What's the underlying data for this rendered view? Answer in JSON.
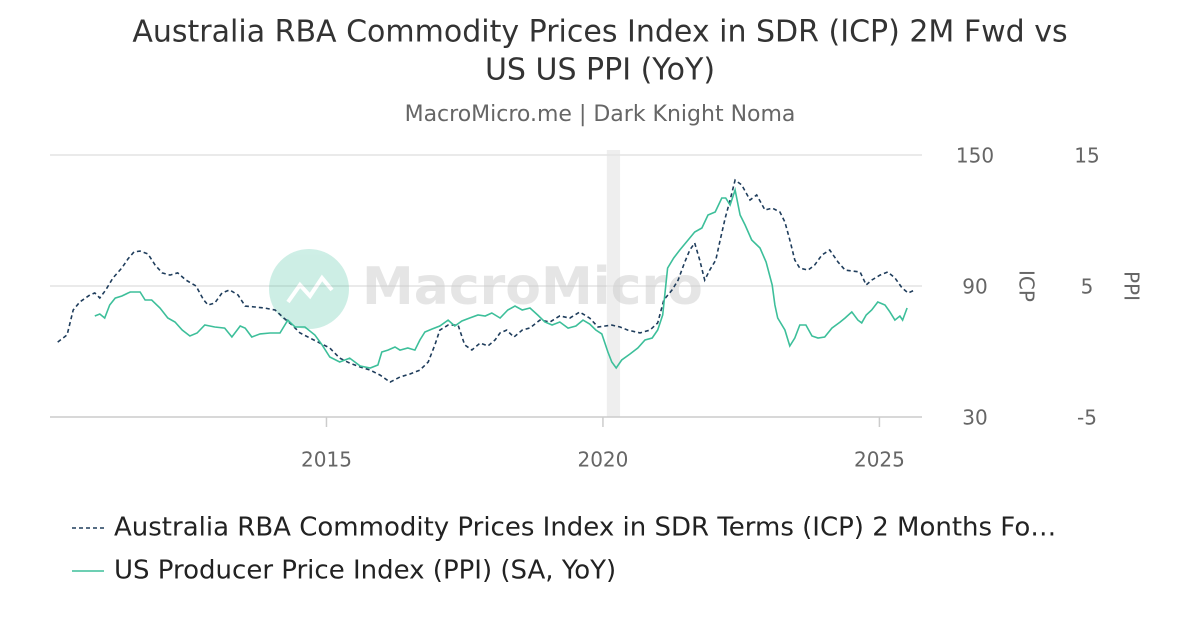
{
  "chart_data": {
    "type": "line",
    "title": [
      "Australia RBA Commodity Prices Index in SDR (ICP) 2M Fwd vs",
      "US US PPI (YoY)"
    ],
    "subtitle": "MacroMicro.me | Dark Knight Noma",
    "watermark": "MacroMicro",
    "xlim": [
      2010.0,
      2025.77
    ],
    "xticks": [
      2015,
      2020,
      2025
    ],
    "ylim": [
      30,
      150
    ],
    "yticks": [
      30,
      90,
      150
    ],
    "ylabel": "ICP",
    "y2lim": [
      -5,
      15
    ],
    "y2ticks": [
      -5,
      5,
      15
    ],
    "y2label": "PPI",
    "grid": true,
    "shaded_x": [
      2020.07,
      2020.31
    ],
    "series": [
      {
        "name": "Australia RBA Commodity Prices Index in SDR Terms (ICP) 2 Months Fo…",
        "color": "#1f3d5c",
        "dashed": true,
        "x": [
          2010.14,
          2010.31,
          2010.42,
          2010.54,
          2010.72,
          2010.81,
          2010.9,
          2011.01,
          2011.14,
          2011.3,
          2011.41,
          2011.52,
          2011.63,
          2011.77,
          2011.9,
          2012.03,
          2012.17,
          2012.31,
          2012.46,
          2012.64,
          2012.78,
          2012.86,
          2012.98,
          2013.11,
          2013.25,
          2013.4,
          2013.53,
          2013.71,
          2013.89,
          2014.07,
          2014.23,
          2014.38,
          2014.52,
          2014.7,
          2014.88,
          2015.06,
          2015.24,
          2015.42,
          2015.61,
          2015.79,
          2015.97,
          2016.15,
          2016.33,
          2016.51,
          2016.69,
          2016.84,
          2016.96,
          2017.05,
          2017.2,
          2017.38,
          2017.5,
          2017.63,
          2017.78,
          2017.92,
          2018.05,
          2018.14,
          2018.26,
          2018.39,
          2018.54,
          2018.68,
          2018.86,
          2019.04,
          2019.22,
          2019.4,
          2019.58,
          2019.76,
          2019.91,
          2020.04,
          2020.16,
          2020.31,
          2020.45,
          2020.67,
          2020.85,
          2020.99,
          2021.1,
          2021.25,
          2021.36,
          2021.48,
          2021.57,
          2021.66,
          2021.75,
          2021.84,
          2021.93,
          2022.04,
          2022.12,
          2022.21,
          2022.3,
          2022.39,
          2022.51,
          2022.66,
          2022.78,
          2022.93,
          2023.06,
          2023.2,
          2023.29,
          2023.38,
          2023.47,
          2023.56,
          2023.71,
          2023.83,
          2023.96,
          2024.1,
          2024.25,
          2024.38,
          2024.5,
          2024.65,
          2024.76,
          2024.86,
          2025.01,
          2025.15,
          2025.28,
          2025.41,
          2025.52,
          2025.64
        ],
        "values": [
          64.3,
          67.6,
          79.0,
          82.7,
          85.9,
          86.8,
          84.5,
          88.2,
          93.7,
          98.3,
          102.4,
          105.6,
          106.0,
          104.7,
          99.6,
          96.0,
          95.0,
          96.0,
          92.7,
          90.0,
          83.6,
          81.3,
          82.2,
          86.8,
          88.2,
          85.9,
          80.8,
          80.4,
          79.9,
          79.0,
          75.3,
          72.1,
          68.5,
          66.2,
          63.9,
          61.6,
          57.0,
          54.7,
          52.9,
          51.5,
          49.2,
          46.0,
          48.3,
          49.7,
          51.5,
          55.2,
          63.0,
          69.8,
          72.1,
          72.1,
          63.0,
          60.7,
          63.9,
          62.5,
          65.3,
          68.5,
          69.8,
          66.6,
          69.8,
          70.8,
          74.4,
          73.5,
          76.3,
          75.3,
          78.1,
          75.3,
          71.2,
          71.7,
          72.1,
          71.2,
          69.8,
          68.5,
          69.8,
          73.1,
          83.6,
          88.2,
          92.7,
          101.0,
          106.5,
          109.7,
          101.9,
          92.7,
          97.3,
          101.9,
          111.1,
          121.1,
          129.4,
          138.5,
          136.3,
          129.4,
          131.7,
          124.8,
          125.7,
          123.9,
          119.3,
          111.1,
          101.9,
          98.2,
          97.3,
          99.6,
          104.2,
          106.5,
          101.0,
          97.3,
          96.9,
          96.4,
          90.5,
          92.7,
          95.0,
          96.4,
          93.7,
          89.1,
          86.8,
          88.2
        ]
      },
      {
        "name": "US Producer Price Index (PPI) (SA, YoY)",
        "color": "#3dbf9a",
        "axis": "y2",
        "x": [
          2010.81,
          2010.9,
          2010.99,
          2011.08,
          2011.18,
          2011.3,
          2011.45,
          2011.63,
          2011.72,
          2011.84,
          2011.99,
          2012.13,
          2012.26,
          2012.39,
          2012.53,
          2012.66,
          2012.8,
          2012.98,
          2013.16,
          2013.29,
          2013.44,
          2013.53,
          2013.65,
          2013.8,
          2013.98,
          2014.16,
          2014.3,
          2014.43,
          2014.61,
          2014.79,
          2014.92,
          2015.06,
          2015.24,
          2015.42,
          2015.61,
          2015.79,
          2015.93,
          2016.0,
          2016.11,
          2016.24,
          2016.33,
          2016.47,
          2016.6,
          2016.69,
          2016.78,
          2016.91,
          2017.05,
          2017.2,
          2017.32,
          2017.45,
          2017.59,
          2017.74,
          2017.87,
          2017.99,
          2018.14,
          2018.28,
          2018.41,
          2018.54,
          2018.68,
          2018.82,
          2018.95,
          2019.08,
          2019.22,
          2019.37,
          2019.51,
          2019.64,
          2019.76,
          2019.87,
          2019.98,
          2020.09,
          2020.16,
          2020.24,
          2020.34,
          2020.49,
          2020.63,
          2020.76,
          2020.89,
          2020.99,
          2021.08,
          2021.17,
          2021.28,
          2021.39,
          2021.54,
          2021.66,
          2021.79,
          2021.9,
          2022.03,
          2022.15,
          2022.22,
          2022.3,
          2022.39,
          2022.48,
          2022.57,
          2022.69,
          2022.84,
          2022.95,
          2023.06,
          2023.11,
          2023.16,
          2023.29,
          2023.38,
          2023.47,
          2023.56,
          2023.67,
          2023.78,
          2023.89,
          2024.01,
          2024.14,
          2024.29,
          2024.38,
          2024.5,
          2024.61,
          2024.68,
          2024.76,
          2024.86,
          2024.97,
          2025.1,
          2025.19,
          2025.28,
          2025.37,
          2025.42,
          2025.5
        ],
        "values": [
          2.71,
          2.86,
          2.56,
          3.55,
          4.08,
          4.24,
          4.54,
          4.54,
          3.93,
          3.93,
          3.32,
          2.56,
          2.25,
          1.64,
          1.18,
          1.41,
          2.02,
          1.87,
          1.79,
          1.11,
          1.95,
          1.79,
          1.11,
          1.34,
          1.41,
          1.41,
          2.4,
          1.87,
          1.87,
          1.26,
          0.5,
          -0.42,
          -0.8,
          -0.5,
          -1.11,
          -1.26,
          -1.03,
          -0.04,
          0.11,
          0.34,
          0.11,
          0.27,
          0.11,
          0.88,
          1.49,
          1.72,
          1.95,
          2.4,
          1.95,
          2.33,
          2.56,
          2.79,
          2.71,
          2.94,
          2.56,
          3.17,
          3.47,
          3.17,
          3.32,
          2.79,
          2.25,
          2.02,
          2.25,
          1.79,
          1.95,
          2.4,
          2.1,
          1.64,
          1.34,
          -0.04,
          -0.8,
          -1.26,
          -0.65,
          -0.19,
          0.27,
          0.88,
          1.03,
          1.64,
          2.79,
          6.37,
          7.14,
          7.75,
          8.51,
          9.12,
          9.43,
          10.42,
          10.65,
          11.72,
          11.72,
          11.18,
          12.33,
          10.42,
          9.66,
          8.51,
          7.9,
          6.83,
          5.08,
          3.55,
          2.56,
          1.64,
          0.42,
          1.03,
          2.02,
          2.02,
          1.18,
          1.03,
          1.11,
          1.79,
          2.25,
          2.56,
          3.02,
          2.4,
          2.18,
          2.79,
          3.17,
          3.78,
          3.55,
          3.02,
          2.4,
          2.71,
          2.4,
          3.32
        ]
      }
    ]
  }
}
